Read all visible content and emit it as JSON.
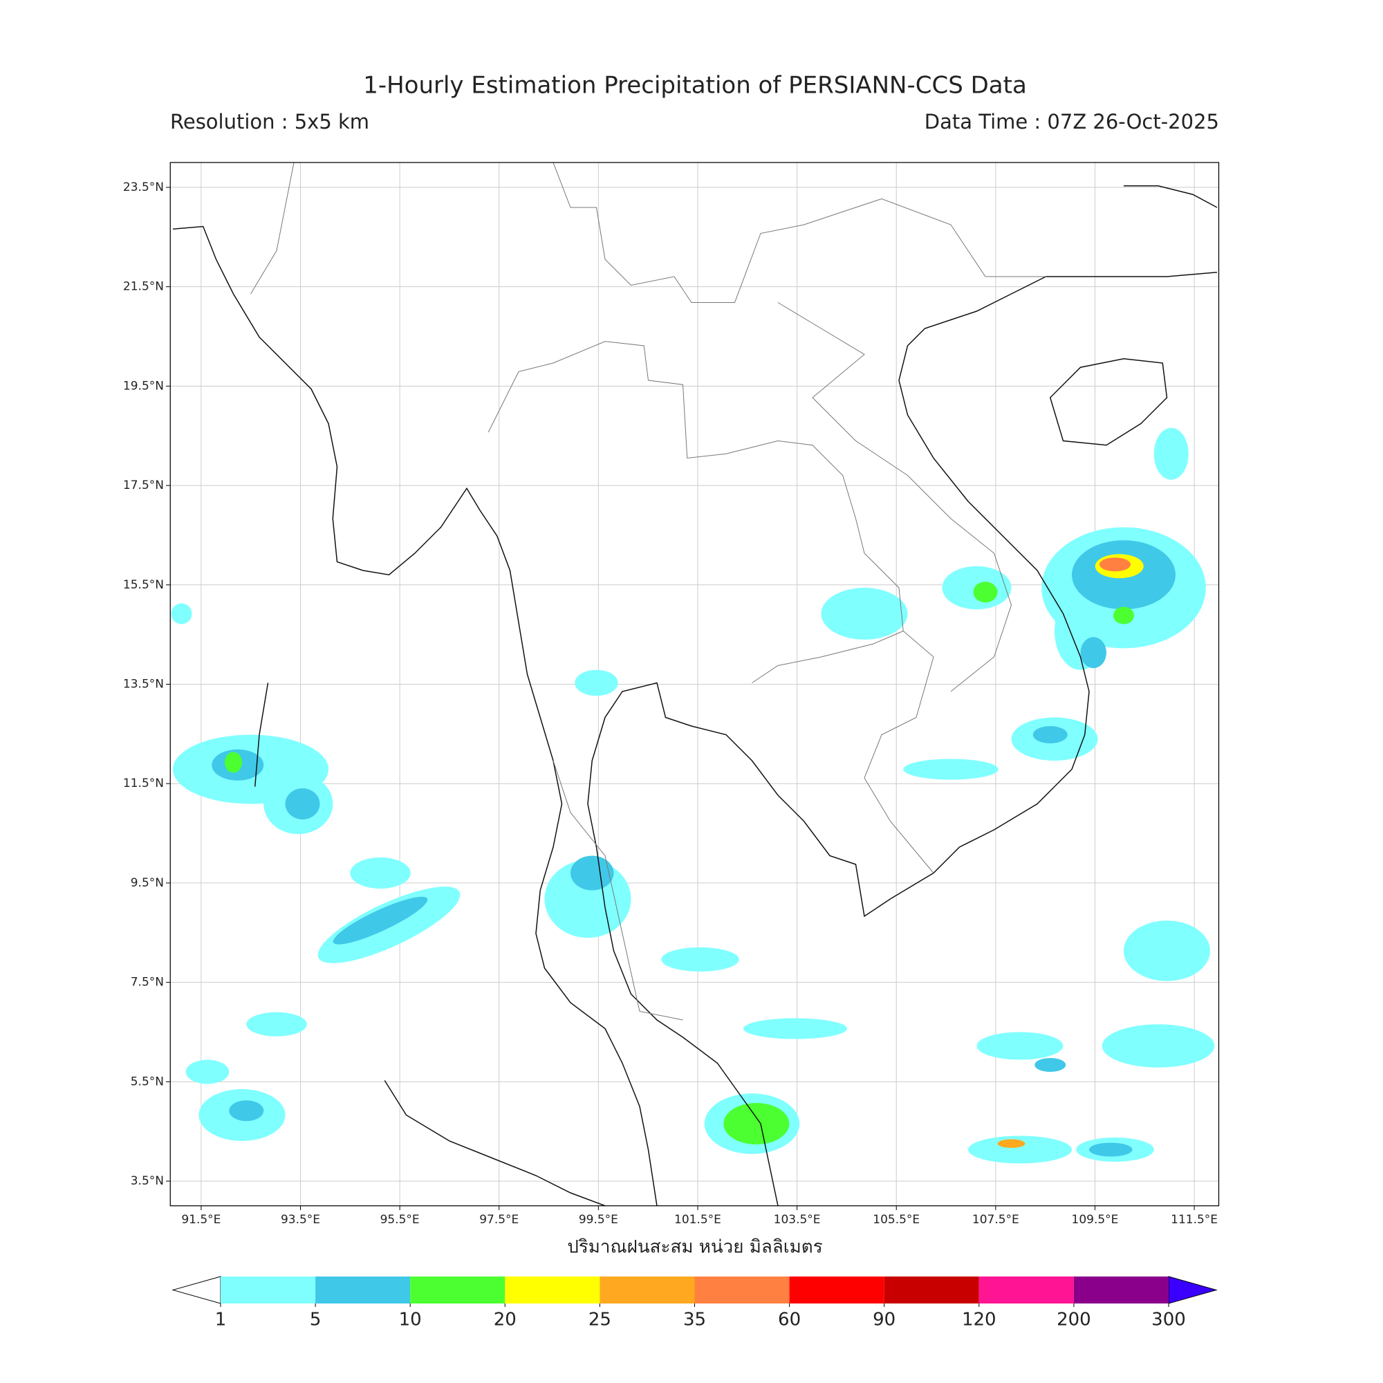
{
  "header": {
    "title": "1-Hourly Estimation Precipitation of PERSIANN-CCS Data",
    "resolution": "Resolution : 5x5 km",
    "data_time": "Data Time : 07Z 26-Oct-2025"
  },
  "map": {
    "xlim": [
      90.875,
      112.0
    ],
    "ylim": [
      3.0,
      24.0
    ],
    "xticks": [
      {
        "value": 91.5,
        "label": "91.5°E"
      },
      {
        "value": 93.5,
        "label": "93.5°E"
      },
      {
        "value": 95.5,
        "label": "95.5°E"
      },
      {
        "value": 97.5,
        "label": "97.5°E"
      },
      {
        "value": 99.5,
        "label": "99.5°E"
      },
      {
        "value": 101.5,
        "label": "101.5°E"
      },
      {
        "value": 103.5,
        "label": "103.5°E"
      },
      {
        "value": 105.5,
        "label": "105.5°E"
      },
      {
        "value": 107.5,
        "label": "107.5°E"
      },
      {
        "value": 109.5,
        "label": "109.5°E"
      },
      {
        "value": 111.5,
        "label": "111.5°E"
      }
    ],
    "yticks": [
      {
        "value": 3.5,
        "label": "3.5°N"
      },
      {
        "value": 5.5,
        "label": "5.5°N"
      },
      {
        "value": 7.5,
        "label": "7.5°N"
      },
      {
        "value": 9.5,
        "label": "9.5°N"
      },
      {
        "value": 11.5,
        "label": "11.5°N"
      },
      {
        "value": 13.5,
        "label": "13.5°N"
      },
      {
        "value": 15.5,
        "label": "15.5°N"
      },
      {
        "value": 17.5,
        "label": "17.5°N"
      },
      {
        "value": 19.5,
        "label": "19.5°N"
      },
      {
        "value": 21.5,
        "label": "21.5°N"
      },
      {
        "value": 23.5,
        "label": "23.5°N"
      }
    ],
    "grid": true,
    "xlabel": "ปริมาณฝนสะสม หน่วย มิลลิเมตร"
  },
  "colorbar": {
    "boundaries": [
      1,
      5,
      10,
      20,
      25,
      35,
      60,
      90,
      120,
      200,
      300
    ],
    "colors": [
      "#80ffff",
      "#40c8e8",
      "#4cff30",
      "#ffff00",
      "#ffa820",
      "#ff8040",
      "#ff0000",
      "#c80000",
      "#ff1493",
      "#8b008b"
    ],
    "under_color": "#ffffff",
    "over_color": "#3a00ff"
  }
}
